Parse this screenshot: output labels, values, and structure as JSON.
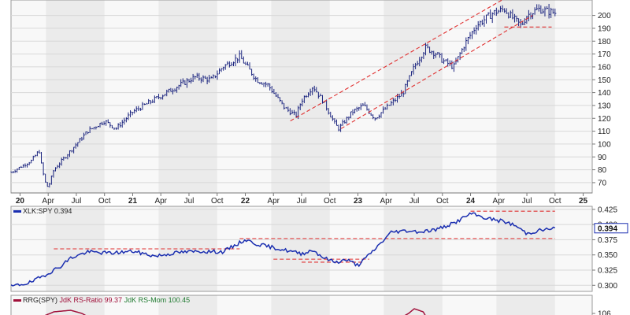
{
  "chart_data": [
    {
      "type": "line",
      "title": "",
      "subtitle": "",
      "price_style": "hlc-bars",
      "x_ticks": [
        {
          "label": "20",
          "bold": true,
          "t": 0.0
        },
        {
          "label": "Apr",
          "bold": false,
          "t": 0.25
        },
        {
          "label": "Jul",
          "bold": false,
          "t": 0.5
        },
        {
          "label": "Oct",
          "bold": false,
          "t": 0.75
        },
        {
          "label": "21",
          "bold": true,
          "t": 1.0
        },
        {
          "label": "Apr",
          "bold": false,
          "t": 1.25
        },
        {
          "label": "Jul",
          "bold": false,
          "t": 1.5
        },
        {
          "label": "Oct",
          "bold": false,
          "t": 1.75
        },
        {
          "label": "22",
          "bold": true,
          "t": 2.0
        },
        {
          "label": "Apr",
          "bold": false,
          "t": 2.25
        },
        {
          "label": "Jul",
          "bold": false,
          "t": 2.5
        },
        {
          "label": "Oct",
          "bold": false,
          "t": 2.75
        },
        {
          "label": "23",
          "bold": true,
          "t": 3.0
        },
        {
          "label": "Apr",
          "bold": false,
          "t": 3.25
        },
        {
          "label": "Jul",
          "bold": false,
          "t": 3.5
        },
        {
          "label": "Oct",
          "bold": false,
          "t": 3.75
        },
        {
          "label": "24",
          "bold": true,
          "t": 4.0
        },
        {
          "label": "Apr",
          "bold": false,
          "t": 4.25
        },
        {
          "label": "Jul",
          "bold": false,
          "t": 4.5
        },
        {
          "label": "Oct",
          "bold": false,
          "t": 4.75
        },
        {
          "label": "25",
          "bold": true,
          "t": 5.0
        }
      ],
      "x_range_years": [
        -0.08,
        5.08
      ],
      "y_ticks": [
        70,
        80,
        90,
        100,
        110,
        120,
        130,
        140,
        150,
        160,
        170,
        180,
        190,
        200
      ],
      "ylim": [
        62,
        212
      ],
      "price_key_points": [
        [
          -0.08,
          78
        ],
        [
          0.1,
          87
        ],
        [
          0.17,
          95
        ],
        [
          0.19,
          84
        ],
        [
          0.22,
          71
        ],
        [
          0.25,
          66
        ],
        [
          0.3,
          80
        ],
        [
          0.45,
          95
        ],
        [
          0.6,
          110
        ],
        [
          0.75,
          118
        ],
        [
          0.85,
          112
        ],
        [
          1.0,
          125
        ],
        [
          1.2,
          135
        ],
        [
          1.4,
          145
        ],
        [
          1.55,
          152
        ],
        [
          1.7,
          150
        ],
        [
          1.8,
          160
        ],
        [
          1.95,
          168
        ],
        [
          2.0,
          162
        ],
        [
          2.1,
          150
        ],
        [
          2.2,
          146
        ],
        [
          2.35,
          128
        ],
        [
          2.45,
          122
        ],
        [
          2.5,
          134
        ],
        [
          2.6,
          145
        ],
        [
          2.7,
          132
        ],
        [
          2.8,
          115
        ],
        [
          2.83,
          112
        ],
        [
          2.95,
          125
        ],
        [
          3.05,
          130
        ],
        [
          3.15,
          120
        ],
        [
          3.25,
          128
        ],
        [
          3.4,
          140
        ],
        [
          3.5,
          160
        ],
        [
          3.6,
          175
        ],
        [
          3.7,
          170
        ],
        [
          3.75,
          165
        ],
        [
          3.85,
          160
        ],
        [
          3.95,
          178
        ],
        [
          4.05,
          192
        ],
        [
          4.2,
          202
        ],
        [
          4.3,
          205
        ],
        [
          4.35,
          200
        ],
        [
          4.45,
          192
        ],
        [
          4.5,
          200
        ],
        [
          4.6,
          205
        ],
        [
          4.75,
          202
        ]
      ],
      "channel_lines": [
        {
          "x": [
            2.4,
            4.28
          ],
          "y": [
            118,
            212
          ],
          "style": "dashed",
          "color": "#e03030"
        },
        {
          "x": [
            2.85,
            4.55
          ],
          "y": [
            112,
            200
          ],
          "style": "dashed",
          "color": "#e03030"
        },
        {
          "x": [
            4.3,
            4.72
          ],
          "y": [
            191,
            191
          ],
          "style": "dashed",
          "color": "#e03030"
        }
      ],
      "shaded_bands": [
        [
          0.23,
          0.75
        ],
        [
          1.23,
          1.75
        ],
        [
          2.23,
          2.75
        ],
        [
          3.23,
          3.75
        ],
        [
          4.23,
          4.75
        ]
      ]
    },
    {
      "type": "line",
      "series": [
        {
          "name": "XLK:SPY",
          "last_value": "0.394"
        }
      ],
      "y_ticks": [
        "0.300",
        "0.325",
        "0.350",
        "0.375",
        "0.400",
        "0.425"
      ],
      "y_values": [
        0.3,
        0.325,
        0.35,
        0.375,
        0.4,
        0.425
      ],
      "ylim": [
        0.29,
        0.43
      ],
      "last_value_marker": {
        "text": "0.394",
        "value": 0.394
      },
      "overlap_label": {
        "text": "0.400",
        "value": 0.4
      },
      "ratio_key_points": [
        [
          -0.08,
          0.298
        ],
        [
          0.1,
          0.305
        ],
        [
          0.2,
          0.315
        ],
        [
          0.35,
          0.33
        ],
        [
          0.45,
          0.345
        ],
        [
          0.6,
          0.355
        ],
        [
          0.8,
          0.353
        ],
        [
          1.0,
          0.356
        ],
        [
          1.2,
          0.348
        ],
        [
          1.4,
          0.354
        ],
        [
          1.6,
          0.356
        ],
        [
          1.8,
          0.355
        ],
        [
          1.95,
          0.37
        ],
        [
          2.0,
          0.375
        ],
        [
          2.1,
          0.368
        ],
        [
          2.3,
          0.36
        ],
        [
          2.5,
          0.352
        ],
        [
          2.6,
          0.358
        ],
        [
          2.7,
          0.345
        ],
        [
          2.8,
          0.338
        ],
        [
          2.9,
          0.342
        ],
        [
          3.0,
          0.333
        ],
        [
          3.1,
          0.35
        ],
        [
          3.3,
          0.388
        ],
        [
          3.45,
          0.39
        ],
        [
          3.55,
          0.388
        ],
        [
          3.7,
          0.392
        ],
        [
          3.85,
          0.402
        ],
        [
          4.0,
          0.418
        ],
        [
          4.15,
          0.41
        ],
        [
          4.3,
          0.405
        ],
        [
          4.4,
          0.398
        ],
        [
          4.5,
          0.385
        ],
        [
          4.6,
          0.39
        ],
        [
          4.75,
          0.394
        ]
      ],
      "reference_lines": [
        {
          "x": [
            0.3,
            1.95
          ],
          "y": 0.36,
          "color": "#e03030",
          "style": "dashed"
        },
        {
          "x": [
            1.95,
            4.75
          ],
          "y": 0.377,
          "color": "#e03030",
          "style": "dashed"
        },
        {
          "x": [
            2.25,
            3.1
          ],
          "y": 0.343,
          "color": "#e03030",
          "style": "dashed"
        },
        {
          "x": [
            2.5,
            3.05
          ],
          "y": 0.338,
          "color": "#e03030",
          "style": "dashed"
        },
        {
          "x": [
            4.0,
            4.75
          ],
          "y": 0.422,
          "color": "#e03030",
          "style": "dashed"
        }
      ]
    },
    {
      "type": "line",
      "legend": {
        "prefix": "RRG(SPY)",
        "ratio_label": "JdK RS-Ratio 99.37",
        "momentum_label": "JdK RS-Mom 100.45"
      },
      "y_ticks": [
        "106"
      ],
      "y_values": [
        106
      ],
      "ylim": [
        100,
        110
      ],
      "ratio_key_points": [
        [
          0.15,
          104
        ],
        [
          0.2,
          105
        ],
        [
          0.3,
          106.5
        ],
        [
          0.45,
          107
        ],
        [
          0.55,
          106
        ],
        [
          0.6,
          105
        ],
        [
          3.35,
          104
        ],
        [
          3.45,
          106
        ],
        [
          3.5,
          107.5
        ],
        [
          3.58,
          106.5
        ],
        [
          3.62,
          104
        ]
      ],
      "momentum_key_points": [
        [
          3.45,
          103
        ],
        [
          3.5,
          104.5
        ],
        [
          3.58,
          103
        ]
      ]
    }
  ],
  "colors": {
    "price_bars": "#1a237e",
    "ratio_line": "#1a2eb0",
    "rs_ratio": "#a0103a",
    "rs_momentum": "#1f7a30",
    "channel": "#e03030",
    "band_dark": "#ebebeb",
    "band_light": "#f8f8f8"
  }
}
